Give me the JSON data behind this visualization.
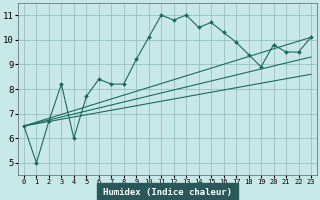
{
  "title": "",
  "xlabel": "Humidex (Indice chaleur)",
  "background_color": "#c8e8e8",
  "axis_bottom_color": "#2a5a5a",
  "line_color": "#1a6a5a",
  "xlim": [
    -0.5,
    23.5
  ],
  "ylim": [
    4.5,
    11.5
  ],
  "xticks": [
    0,
    1,
    2,
    3,
    4,
    5,
    6,
    7,
    8,
    9,
    10,
    11,
    12,
    13,
    14,
    15,
    16,
    17,
    18,
    19,
    20,
    21,
    22,
    23
  ],
  "yticks": [
    5,
    6,
    7,
    8,
    9,
    10,
    11
  ],
  "series": [
    {
      "x": [
        0,
        1,
        2,
        3,
        4,
        5,
        6,
        7,
        8,
        9,
        10,
        11,
        12,
        13,
        14,
        15,
        16,
        17,
        18,
        19,
        20,
        21,
        22,
        23
      ],
      "y": [
        6.5,
        5.0,
        6.7,
        8.2,
        6.0,
        7.7,
        8.4,
        8.2,
        8.2,
        9.2,
        10.1,
        11.0,
        10.8,
        11.0,
        10.5,
        10.7,
        10.3,
        9.9,
        9.4,
        8.9,
        9.8,
        9.5,
        9.5,
        10.1
      ],
      "has_markers": true
    },
    {
      "x": [
        0,
        23
      ],
      "y": [
        6.5,
        10.1
      ],
      "has_markers": false
    },
    {
      "x": [
        0,
        23
      ],
      "y": [
        6.5,
        8.6
      ],
      "has_markers": false
    },
    {
      "x": [
        0,
        23
      ],
      "y": [
        6.5,
        9.3
      ],
      "has_markers": false
    }
  ]
}
